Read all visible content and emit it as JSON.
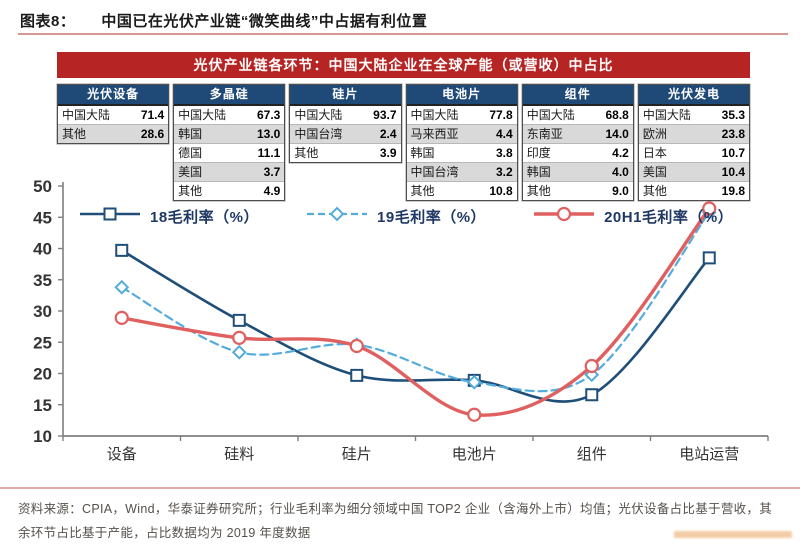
{
  "header": {
    "figure_label": "图表8：",
    "title": "中国已在光伏产业链“微笑曲线”中占据有利位置"
  },
  "banner": {
    "text": "光伏产业链各环节：中国大陆企业在全球产能（或营收）中占比"
  },
  "tables": [
    {
      "title": "光伏设备",
      "rows": [
        [
          "中国大陆",
          "71.4"
        ],
        [
          "其他",
          "28.6"
        ]
      ]
    },
    {
      "title": "多晶硅",
      "rows": [
        [
          "中国大陆",
          "67.3"
        ],
        [
          "韩国",
          "13.0"
        ],
        [
          "德国",
          "11.1"
        ],
        [
          "美国",
          "3.7"
        ],
        [
          "其他",
          "4.9"
        ]
      ]
    },
    {
      "title": "硅片",
      "rows": [
        [
          "中国大陆",
          "93.7"
        ],
        [
          "中国台湾",
          "2.4"
        ],
        [
          "其他",
          "3.9"
        ]
      ]
    },
    {
      "title": "电池片",
      "rows": [
        [
          "中国大陆",
          "77.8"
        ],
        [
          "马来西亚",
          "4.4"
        ],
        [
          "韩国",
          "3.8"
        ],
        [
          "中国台湾",
          "3.2"
        ],
        [
          "其他",
          "10.8"
        ]
      ]
    },
    {
      "title": "组件",
      "rows": [
        [
          "中国大陆",
          "68.8"
        ],
        [
          "东南亚",
          "14.0"
        ],
        [
          "印度",
          "4.2"
        ],
        [
          "韩国",
          "4.0"
        ],
        [
          "其他",
          "9.0"
        ]
      ]
    },
    {
      "title": "光伏发电",
      "rows": [
        [
          "中国大陆",
          "35.3"
        ],
        [
          "欧洲",
          "23.8"
        ],
        [
          "日本",
          "10.7"
        ],
        [
          "美国",
          "10.4"
        ],
        [
          "其他",
          "19.8"
        ]
      ]
    }
  ],
  "chart_data": {
    "type": "line",
    "categories": [
      "设备",
      "硅料",
      "硅片",
      "电池片",
      "组件",
      "电站运营"
    ],
    "series": [
      {
        "name": "18毛利率（%）",
        "color": "#1f4e79",
        "style": "solid",
        "marker": "square",
        "values": [
          39.7,
          28.5,
          19.7,
          18.9,
          16.6,
          38.5
        ]
      },
      {
        "name": "19毛利率（%）",
        "color": "#54acdc",
        "style": "dashed",
        "marker": "diamond",
        "values": [
          33.8,
          23.4,
          24.6,
          18.6,
          19.8,
          45.8
        ]
      },
      {
        "name": "20H1毛利率（%）",
        "color": "#e06060",
        "style": "solid",
        "marker": "circle",
        "values": [
          28.9,
          25.7,
          24.4,
          13.4,
          21.2,
          46.4
        ]
      }
    ],
    "ylim": [
      10,
      50
    ],
    "ytick_step": 5,
    "grid": false,
    "legend_position": "top-inside",
    "title": "",
    "xlabel": "",
    "ylabel": ""
  },
  "footer": {
    "text": "资料来源：CPIA，Wind，华泰证券研究所；行业毛利率为细分领域中国 TOP2 企业（含海外上市）均值；光伏设备占比基于营收，其余环节占比基于产能，占比数据均为 2019 年度数据"
  },
  "colors": {
    "banner_bg": "#b62524",
    "table_header_bg": "#1f4977",
    "table_alt_row": "#d9d9d9",
    "title_rule": "#c87472",
    "axis": "#7f7f7f",
    "axis_text": "#333333",
    "legend_text": "#1f3864",
    "footer_text": "#55504b",
    "series_18": "#1f4e79",
    "series_19": "#54acdc",
    "series_20h1": "#e06060"
  }
}
